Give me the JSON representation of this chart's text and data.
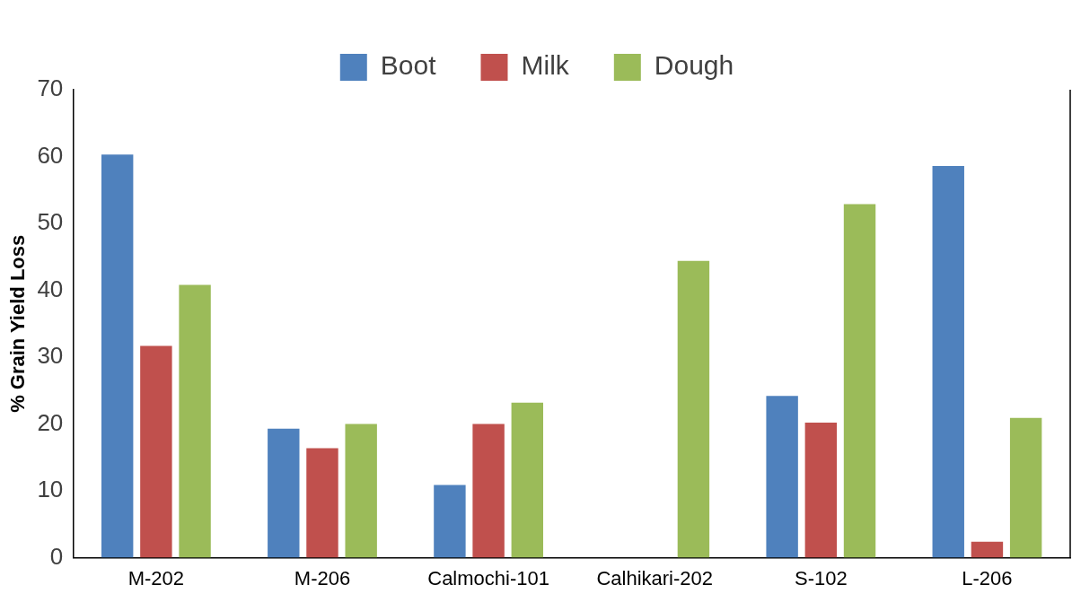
{
  "chart_data": {
    "type": "bar",
    "ylabel": "% Grain Yield Loss",
    "categories": [
      "M-202",
      "M-206",
      "Calmochi-101",
      "Calhikari-202",
      "S-102",
      "L-206"
    ],
    "series": [
      {
        "name": "Boot",
        "color": "#4f81bd",
        "values": [
          60.3,
          19.3,
          10.9,
          null,
          24.2,
          58.6
        ]
      },
      {
        "name": "Milk",
        "color": "#c0504d",
        "values": [
          31.7,
          16.4,
          20.0,
          null,
          20.2,
          2.4
        ]
      },
      {
        "name": "Dough",
        "color": "#9bbb59",
        "values": [
          40.8,
          20.0,
          23.2,
          44.4,
          52.9,
          20.9
        ]
      }
    ],
    "ylim": [
      0,
      70
    ],
    "yticks": [
      0,
      10,
      20,
      30,
      40,
      50,
      60,
      70
    ],
    "grid": false,
    "legend": "top"
  }
}
